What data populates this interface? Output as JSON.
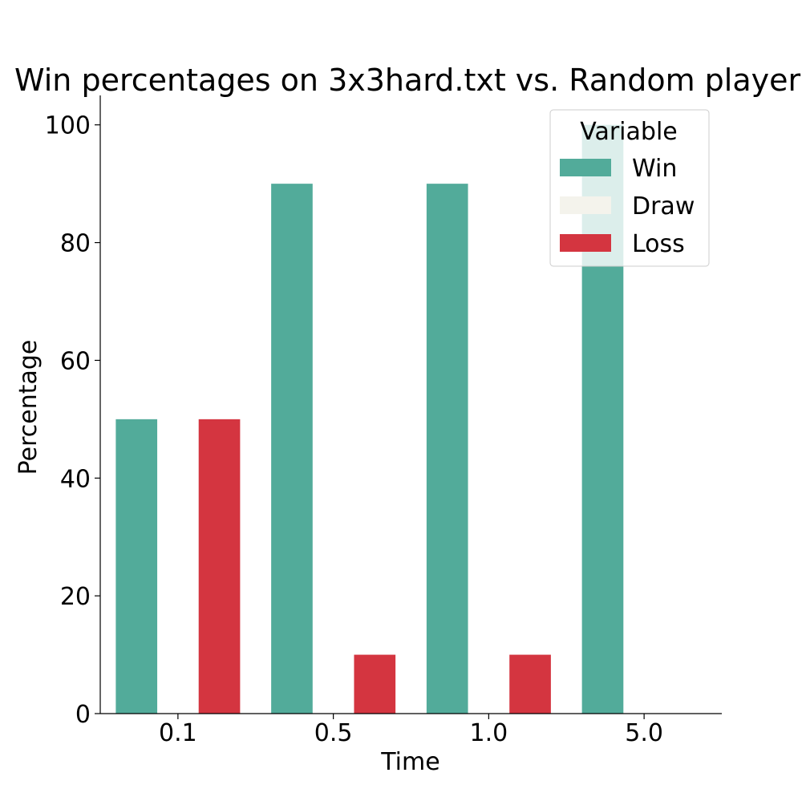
{
  "chart_data": {
    "type": "bar",
    "title": "Win percentages on 3x3hard.txt vs. Random player",
    "xlabel": "Time",
    "ylabel": "Percentage",
    "categories": [
      "0.1",
      "0.5",
      "1.0",
      "5.0"
    ],
    "ylim": [
      0,
      105
    ],
    "yticks": [
      0,
      20,
      40,
      60,
      80,
      100
    ],
    "grid": false,
    "legend": {
      "title": "Variable",
      "placement": "top-right"
    },
    "series": [
      {
        "name": "Win",
        "color": "#52ab9a",
        "values": [
          50,
          90,
          90,
          100
        ]
      },
      {
        "name": "Draw",
        "color": "#f4f3ec",
        "values": [
          0,
          0,
          0,
          0
        ]
      },
      {
        "name": "Loss",
        "color": "#d43540",
        "values": [
          50,
          10,
          10,
          0
        ]
      }
    ]
  }
}
